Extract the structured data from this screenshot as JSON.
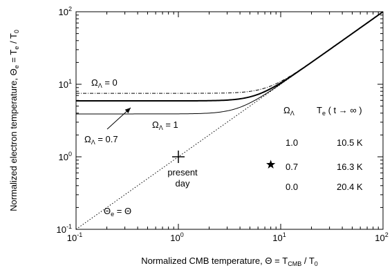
{
  "chart_data": {
    "type": "line",
    "x_scale": "log",
    "y_scale": "log",
    "xlim": [
      0.1,
      100
    ],
    "ylim": [
      0.1,
      100
    ],
    "xlabel": {
      "main": "Normalized CMB temperature, Θ = T",
      "sub": "CMB",
      "tail": " / T",
      "sub2": "0"
    },
    "ylabel": {
      "main": "Normalized electron temperature, Θ",
      "sub": "e",
      "mid": " = T",
      "sub2": "e",
      "tail": " / T",
      "sub3": "0"
    },
    "x_ticks": [
      {
        "value": 0.1,
        "base": "10",
        "exp": "-1"
      },
      {
        "value": 1,
        "base": "10",
        "exp": "0"
      },
      {
        "value": 10,
        "base": "10",
        "exp": "1"
      },
      {
        "value": 100,
        "base": "10",
        "exp": "2"
      }
    ],
    "y_ticks": [
      {
        "value": 0.1,
        "base": "10",
        "exp": "-1"
      },
      {
        "value": 1,
        "base": "10",
        "exp": "0"
      },
      {
        "value": 10,
        "base": "10",
        "exp": "1"
      },
      {
        "value": 100,
        "base": "10",
        "exp": "2"
      }
    ],
    "series": [
      {
        "omega": 0,
        "asymptote": 7.5,
        "style": "dashdot"
      },
      {
        "omega": 0.7,
        "asymptote": 5.9,
        "style": "thick"
      },
      {
        "omega": 1,
        "asymptote": 3.9,
        "style": "thin"
      }
    ],
    "reference_line": {
      "style": "dotted",
      "x": [
        0.1,
        100
      ],
      "y": [
        0.1,
        100
      ]
    },
    "present_day_marker": {
      "x": 1,
      "y": 1,
      "marker": "cross"
    },
    "star_marker": {
      "x": 8,
      "y": 0.78,
      "marker": "star"
    },
    "annotations": {
      "omega0": {
        "sym": "Ω",
        "sub": "Λ",
        "rest": " = 0"
      },
      "omega07": {
        "sym": "Ω",
        "sub": "Λ",
        "rest": " = 0.7"
      },
      "omega1": {
        "sym": "Ω",
        "sub": "Λ",
        "rest": " = 1"
      },
      "present_line1": "present",
      "present_line2": "day",
      "identity": {
        "sym": "Θ",
        "sub": "e",
        "rest": " = Θ"
      }
    },
    "table": {
      "header_omega": {
        "sym": "Ω",
        "sub": "Λ"
      },
      "header_te": {
        "sym": "T",
        "sub": "e",
        "rest": " ( t → ∞ )"
      },
      "rows": [
        {
          "omega": "1.0",
          "te": "10.5 K"
        },
        {
          "omega": "0.7",
          "te": "16.3 K"
        },
        {
          "omega": "0.0",
          "te": "20.4 K"
        }
      ]
    }
  }
}
